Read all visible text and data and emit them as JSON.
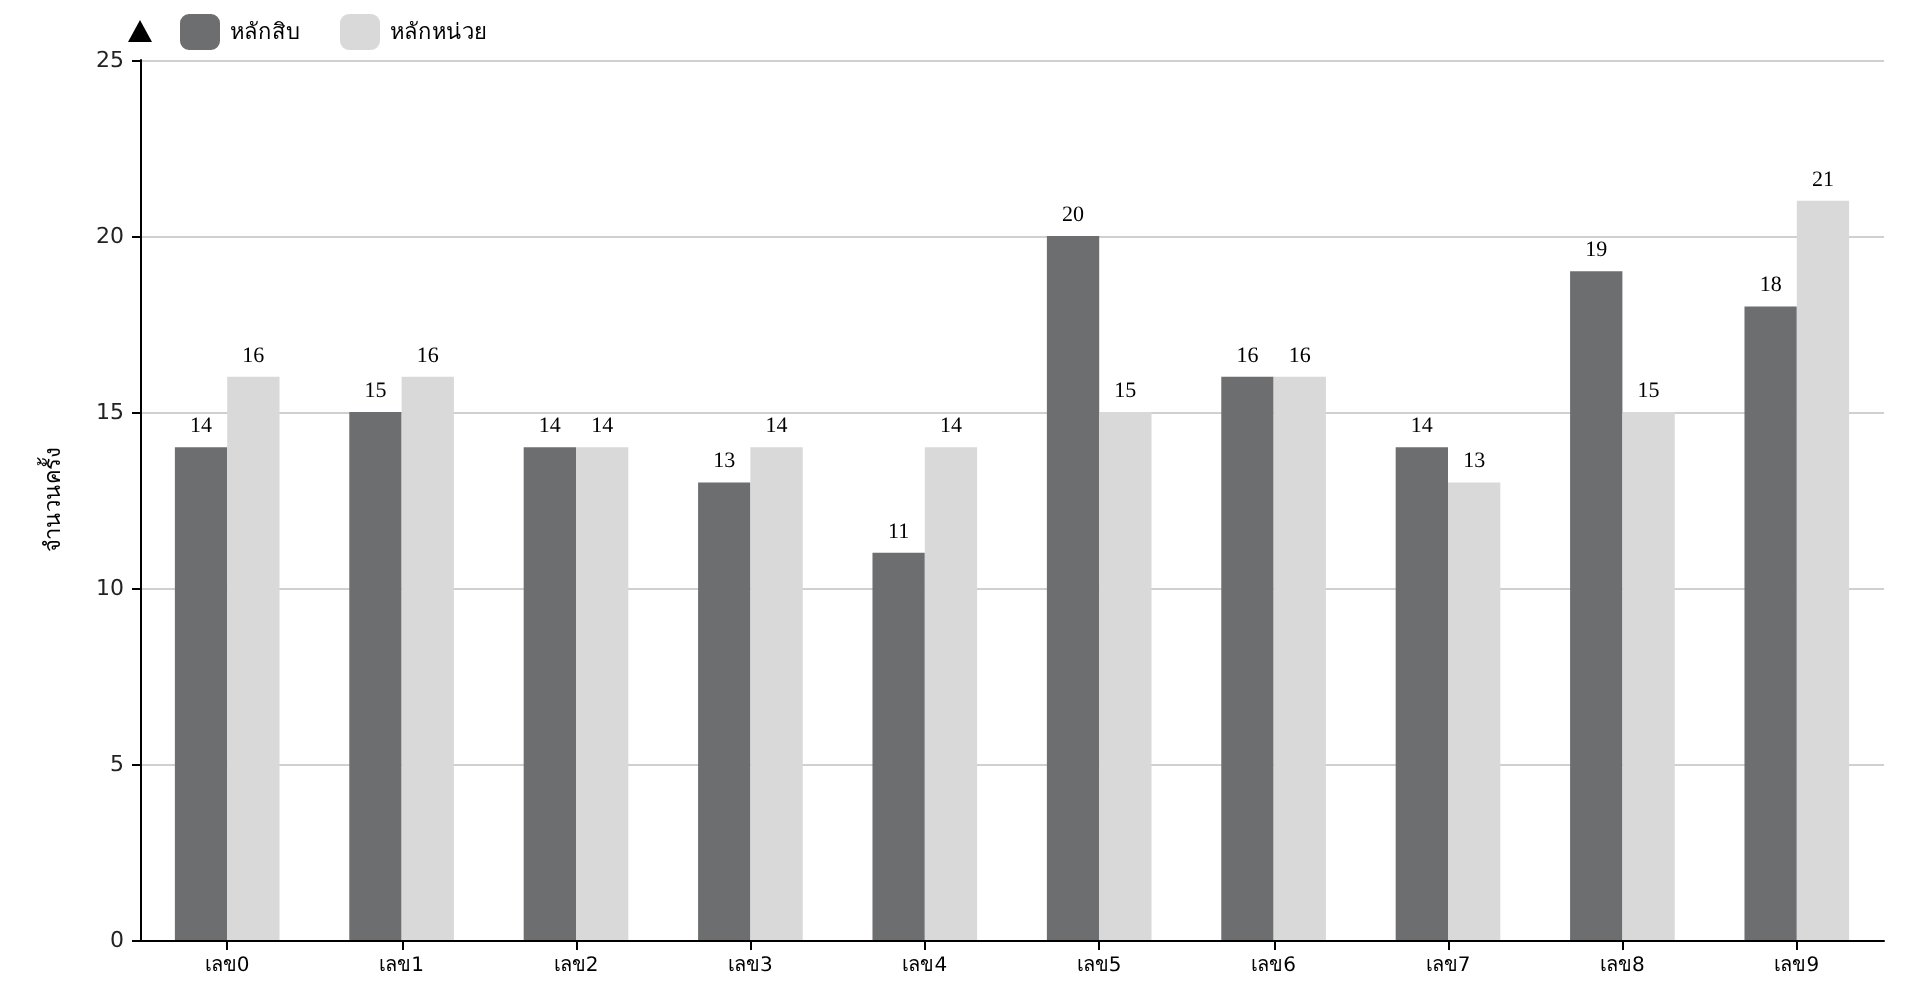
{
  "chart_data": {
    "type": "bar",
    "ylabel": "จำนวนครั้ง",
    "categories": [
      "เลข0",
      "เลข1",
      "เลข2",
      "เลข3",
      "เลข4",
      "เลข5",
      "เลข6",
      "เลข7",
      "เลข8",
      "เลข9"
    ],
    "series": [
      {
        "name": "หลักสิบ",
        "color": "#6d6e70",
        "values": [
          14,
          15,
          14,
          13,
          11,
          20,
          16,
          14,
          19,
          18
        ]
      },
      {
        "name": "หลักหน่วย",
        "color": "#d9d9d9",
        "values": [
          16,
          16,
          14,
          14,
          14,
          15,
          16,
          13,
          15,
          21
        ]
      }
    ],
    "ylim": [
      0,
      25
    ],
    "yticks": [
      0,
      5,
      10,
      15,
      20,
      25
    ],
    "grid": "y",
    "legend": "top left",
    "data_labels": true
  }
}
